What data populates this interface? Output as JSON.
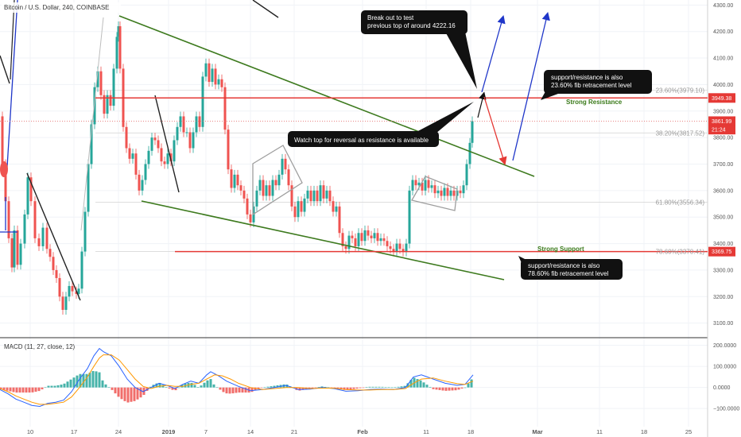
{
  "header": {
    "symbol": "Bitcoin / U.S. Dollar, 240, COINBASE",
    "macd_label": "MACD (11, 27, close, 12)"
  },
  "chart_data": {
    "type": "candlestick",
    "price_axis": {
      "ticks": [
        3100,
        3200,
        3300,
        3400,
        3500,
        3600,
        3700,
        3800,
        3900,
        4000,
        4100,
        4200,
        4300
      ],
      "labels": [
        "3100.00",
        "3200.00",
        "3300.00",
        "3400.00",
        "3500.00",
        "3600.00",
        "3700.00",
        "3800.00",
        "3900.00",
        "4000.00",
        "4100.00",
        "4200.00",
        "4300.00"
      ],
      "range": [
        3060,
        4310
      ]
    },
    "macd_axis": {
      "ticks": [
        200,
        100,
        0,
        -100
      ],
      "labels": [
        "200.0000",
        "100.0000",
        "0.0000",
        "−100.0000"
      ],
      "range": [
        -220,
        210
      ]
    },
    "time_axis": {
      "labels": [
        "10",
        "17",
        "24",
        "2019",
        "7",
        "14",
        "21",
        "Feb",
        "11",
        "18",
        "Mar",
        "11",
        "18",
        "25"
      ]
    },
    "price_tags": [
      {
        "label": "3949.38",
        "price": 3949.38,
        "color": "#e53935"
      },
      {
        "label": "3861.99",
        "price": 3861.99,
        "color": "#e53935"
      },
      {
        "label": "21:24",
        "price": 3830,
        "color": "#e53935"
      },
      {
        "label": "3369.75",
        "price": 3369.75,
        "color": "#e53935"
      }
    ],
    "fib_levels": [
      {
        "label": "23.60%(3979.10)",
        "price": 3979.1
      },
      {
        "label": "38.20%(3817.52)",
        "price": 3817.52
      },
      {
        "label": "61.80%(3556.34)",
        "price": 3556.34
      },
      {
        "label": "78.60%(3370.41)",
        "price": 3370.41
      }
    ],
    "horizontal_levels": [
      {
        "label": "Strong Resistance",
        "price": 3949.38,
        "color": "#e53935"
      },
      {
        "label": "Strong Support",
        "price": 3369.75,
        "color": "#e53935"
      }
    ],
    "annotations": [
      {
        "text": [
          "Break out to test",
          "previous top of around 4222.16"
        ]
      },
      {
        "text": [
          "support/resistance is also",
          "23.60% fib retracement level"
        ]
      },
      {
        "text": [
          "Watch top for reversal as resistance is available"
        ]
      },
      {
        "text": [
          "support/resistance is also",
          "78.60% fib retracement level"
        ]
      }
    ],
    "price_path": [
      [
        0,
        3880
      ],
      [
        4,
        3700
      ],
      [
        8,
        3560
      ],
      [
        12,
        3420
      ],
      [
        16,
        3310
      ],
      [
        19,
        3450
      ],
      [
        23,
        3320
      ],
      [
        27,
        3400
      ],
      [
        32,
        3510
      ],
      [
        36,
        3650
      ],
      [
        40,
        3560
      ],
      [
        45,
        3420
      ],
      [
        50,
        3390
      ],
      [
        55,
        3460
      ],
      [
        60,
        3380
      ],
      [
        64,
        3350
      ],
      [
        68,
        3300
      ],
      [
        72,
        3270
      ],
      [
        76,
        3200
      ],
      [
        80,
        3150
      ],
      [
        84,
        3200
      ],
      [
        88,
        3240
      ],
      [
        92,
        3220
      ],
      [
        97,
        3210
      ],
      [
        100,
        3230
      ],
      [
        104,
        3370
      ],
      [
        108,
        3520
      ],
      [
        112,
        3700
      ],
      [
        116,
        3850
      ],
      [
        120,
        3990
      ],
      [
        124,
        4050
      ],
      [
        128,
        3960
      ],
      [
        132,
        3890
      ],
      [
        136,
        3960
      ],
      [
        140,
        3920
      ],
      [
        144,
        4060
      ],
      [
        148,
        4180
      ],
      [
        150,
        4220
      ],
      [
        152,
        4060
      ],
      [
        156,
        3840
      ],
      [
        160,
        3760
      ],
      [
        164,
        3720
      ],
      [
        168,
        3740
      ],
      [
        172,
        3660
      ],
      [
        176,
        3600
      ],
      [
        180,
        3640
      ],
      [
        184,
        3700
      ],
      [
        188,
        3750
      ],
      [
        192,
        3800
      ],
      [
        196,
        3790
      ],
      [
        200,
        3760
      ],
      [
        204,
        3710
      ],
      [
        208,
        3700
      ],
      [
        212,
        3740
      ],
      [
        216,
        3710
      ],
      [
        220,
        3790
      ],
      [
        224,
        3840
      ],
      [
        228,
        3880
      ],
      [
        232,
        3820
      ],
      [
        236,
        3820
      ],
      [
        240,
        3760
      ],
      [
        244,
        3820
      ],
      [
        248,
        3880
      ],
      [
        252,
        3840
      ],
      [
        256,
        4030
      ],
      [
        260,
        4080
      ],
      [
        264,
        4010
      ],
      [
        268,
        4060
      ],
      [
        272,
        4000
      ],
      [
        276,
        4020
      ],
      [
        280,
        3990
      ],
      [
        284,
        3830
      ],
      [
        288,
        3680
      ],
      [
        292,
        3610
      ],
      [
        296,
        3660
      ],
      [
        300,
        3620
      ],
      [
        304,
        3600
      ],
      [
        308,
        3570
      ],
      [
        312,
        3510
      ],
      [
        316,
        3480
      ],
      [
        320,
        3540
      ],
      [
        324,
        3600
      ],
      [
        328,
        3640
      ],
      [
        332,
        3580
      ],
      [
        336,
        3620
      ],
      [
        340,
        3580
      ],
      [
        344,
        3640
      ],
      [
        348,
        3620
      ],
      [
        352,
        3660
      ],
      [
        356,
        3720
      ],
      [
        360,
        3680
      ],
      [
        364,
        3620
      ],
      [
        368,
        3540
      ],
      [
        372,
        3500
      ],
      [
        376,
        3560
      ],
      [
        380,
        3520
      ],
      [
        384,
        3570
      ],
      [
        388,
        3600
      ],
      [
        392,
        3560
      ],
      [
        396,
        3600
      ],
      [
        400,
        3560
      ],
      [
        404,
        3620
      ],
      [
        408,
        3570
      ],
      [
        412,
        3600
      ],
      [
        416,
        3560
      ],
      [
        420,
        3520
      ],
      [
        424,
        3540
      ],
      [
        428,
        3440
      ],
      [
        432,
        3390
      ],
      [
        436,
        3380
      ],
      [
        440,
        3430
      ],
      [
        444,
        3420
      ],
      [
        448,
        3390
      ],
      [
        452,
        3440
      ],
      [
        456,
        3410
      ],
      [
        460,
        3450
      ],
      [
        464,
        3430
      ],
      [
        468,
        3420
      ],
      [
        472,
        3440
      ],
      [
        476,
        3410
      ],
      [
        480,
        3420
      ],
      [
        484,
        3410
      ],
      [
        488,
        3390
      ],
      [
        492,
        3380
      ],
      [
        496,
        3370
      ],
      [
        500,
        3400
      ],
      [
        504,
        3380
      ],
      [
        508,
        3370
      ],
      [
        512,
        3400
      ],
      [
        516,
        3600
      ],
      [
        520,
        3640
      ],
      [
        524,
        3620
      ],
      [
        528,
        3630
      ],
      [
        532,
        3600
      ],
      [
        536,
        3640
      ],
      [
        540,
        3610
      ],
      [
        544,
        3620
      ],
      [
        548,
        3590
      ],
      [
        552,
        3600
      ],
      [
        556,
        3580
      ],
      [
        560,
        3610
      ],
      [
        564,
        3580
      ],
      [
        568,
        3600
      ],
      [
        572,
        3580
      ],
      [
        576,
        3600
      ],
      [
        580,
        3590
      ],
      [
        584,
        3620
      ],
      [
        588,
        3700
      ],
      [
        592,
        3780
      ],
      [
        595,
        3862
      ]
    ],
    "macd_line": [
      [
        0,
        -10
      ],
      [
        10,
        -30
      ],
      [
        20,
        -55
      ],
      [
        30,
        -70
      ],
      [
        40,
        -85
      ],
      [
        50,
        -90
      ],
      [
        60,
        -75
      ],
      [
        70,
        -70
      ],
      [
        80,
        -60
      ],
      [
        90,
        -20
      ],
      [
        100,
        40
      ],
      [
        110,
        90
      ],
      [
        118,
        150
      ],
      [
        125,
        185
      ],
      [
        130,
        170
      ],
      [
        140,
        150
      ],
      [
        150,
        100
      ],
      [
        160,
        40
      ],
      [
        170,
        0
      ],
      [
        180,
        -20
      ],
      [
        190,
        0
      ],
      [
        200,
        20
      ],
      [
        210,
        10
      ],
      [
        220,
        -5
      ],
      [
        230,
        15
      ],
      [
        240,
        30
      ],
      [
        250,
        20
      ],
      [
        260,
        60
      ],
      [
        265,
        75
      ],
      [
        275,
        55
      ],
      [
        285,
        30
      ],
      [
        300,
        5
      ],
      [
        315,
        -15
      ],
      [
        330,
        -10
      ],
      [
        345,
        0
      ],
      [
        360,
        10
      ],
      [
        375,
        -10
      ],
      [
        390,
        -8
      ],
      [
        405,
        0
      ],
      [
        420,
        -5
      ],
      [
        435,
        -18
      ],
      [
        450,
        -15
      ],
      [
        465,
        -10
      ],
      [
        480,
        -8
      ],
      [
        495,
        -10
      ],
      [
        510,
        0
      ],
      [
        520,
        50
      ],
      [
        530,
        60
      ],
      [
        545,
        40
      ],
      [
        560,
        20
      ],
      [
        575,
        10
      ],
      [
        585,
        15
      ],
      [
        595,
        60
      ]
    ],
    "signal_line": [
      [
        0,
        -5
      ],
      [
        10,
        -20
      ],
      [
        20,
        -40
      ],
      [
        30,
        -55
      ],
      [
        40,
        -70
      ],
      [
        50,
        -80
      ],
      [
        60,
        -80
      ],
      [
        70,
        -75
      ],
      [
        80,
        -70
      ],
      [
        90,
        -45
      ],
      [
        100,
        0
      ],
      [
        110,
        50
      ],
      [
        118,
        100
      ],
      [
        125,
        140
      ],
      [
        130,
        155
      ],
      [
        140,
        155
      ],
      [
        150,
        130
      ],
      [
        160,
        85
      ],
      [
        170,
        40
      ],
      [
        180,
        5
      ],
      [
        190,
        -5
      ],
      [
        200,
        5
      ],
      [
        210,
        10
      ],
      [
        220,
        5
      ],
      [
        230,
        5
      ],
      [
        240,
        15
      ],
      [
        250,
        20
      ],
      [
        260,
        40
      ],
      [
        270,
        60
      ],
      [
        280,
        55
      ],
      [
        290,
        40
      ],
      [
        300,
        20
      ],
      [
        315,
        0
      ],
      [
        330,
        -10
      ],
      [
        345,
        -5
      ],
      [
        360,
        0
      ],
      [
        375,
        0
      ],
      [
        390,
        -5
      ],
      [
        405,
        -3
      ],
      [
        420,
        -3
      ],
      [
        435,
        -10
      ],
      [
        450,
        -12
      ],
      [
        465,
        -12
      ],
      [
        480,
        -10
      ],
      [
        495,
        -10
      ],
      [
        510,
        -5
      ],
      [
        520,
        20
      ],
      [
        530,
        40
      ],
      [
        545,
        45
      ],
      [
        560,
        30
      ],
      [
        575,
        18
      ],
      [
        585,
        15
      ],
      [
        595,
        30
      ]
    ]
  }
}
